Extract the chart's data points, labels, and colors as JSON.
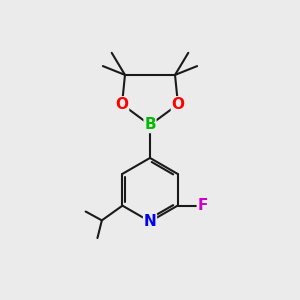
{
  "background_color": "#ebebeb",
  "bond_color": "#1a1a1a",
  "atom_colors": {
    "B": "#00bb00",
    "O": "#ff0000",
    "N": "#0000ee",
    "F": "#cc00cc",
    "C": "#1a1a1a"
  },
  "bond_width": 1.5,
  "font_size_atom": 11,
  "figsize": [
    3.0,
    3.0
  ],
  "dpi": 100
}
